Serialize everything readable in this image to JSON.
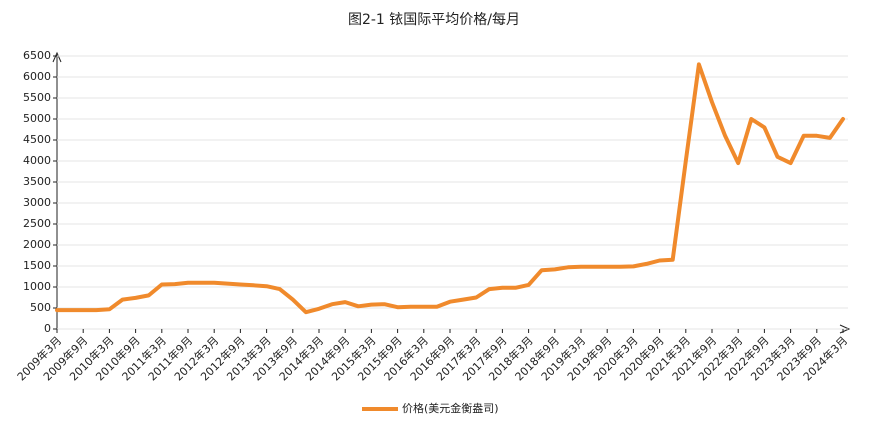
{
  "chart_data": {
    "type": "line",
    "title": "图2-1 铱国际平均价格/每月",
    "categories": [
      "2009年3月",
      null,
      "2009年9月",
      null,
      "2010年3月",
      null,
      "2010年9月",
      null,
      "2011年3月",
      null,
      "2011年9月",
      null,
      "2012年3月",
      null,
      "2012年9月",
      null,
      "2013年3月",
      null,
      "2013年9月",
      null,
      "2014年3月",
      null,
      "2014年9月",
      null,
      "2015年3月",
      null,
      "2015年9月",
      null,
      "2016年3月",
      null,
      "2016年9月",
      null,
      "2017年3月",
      null,
      "2017年9月",
      null,
      "2018年3月",
      null,
      "2018年9月",
      null,
      "2019年3月",
      null,
      "2019年9月",
      null,
      "2020年3月",
      null,
      "2020年9月",
      null,
      "2021年3月",
      null,
      "2021年9月",
      null,
      "2022年3月",
      null,
      "2022年9月",
      null,
      "2023年3月",
      null,
      "2023年9月",
      null,
      "2024年3月"
    ],
    "series": [
      {
        "name": "价格(美元金衡盎司)",
        "color": "#f08a2c",
        "values": [
          450,
          450,
          450,
          450,
          470,
          700,
          740,
          800,
          1060,
          1070,
          1100,
          1100,
          1100,
          1080,
          1060,
          1040,
          1020,
          950,
          700,
          400,
          480,
          590,
          640,
          540,
          580,
          590,
          520,
          530,
          530,
          530,
          650,
          700,
          750,
          950,
          980,
          980,
          1050,
          1400,
          1420,
          1470,
          1480,
          1480,
          1480,
          1480,
          1490,
          1550,
          1630,
          1650,
          4000,
          6300,
          5400,
          4600,
          3950,
          5000,
          4800,
          4100,
          3950,
          4600,
          4600,
          4550,
          5000
        ]
      }
    ],
    "ylim": [
      0,
      6500
    ],
    "yticks": [
      0,
      500,
      1000,
      1500,
      2000,
      2500,
      3000,
      3500,
      4000,
      4500,
      5000,
      5500,
      6000,
      6500
    ],
    "grid": true
  }
}
